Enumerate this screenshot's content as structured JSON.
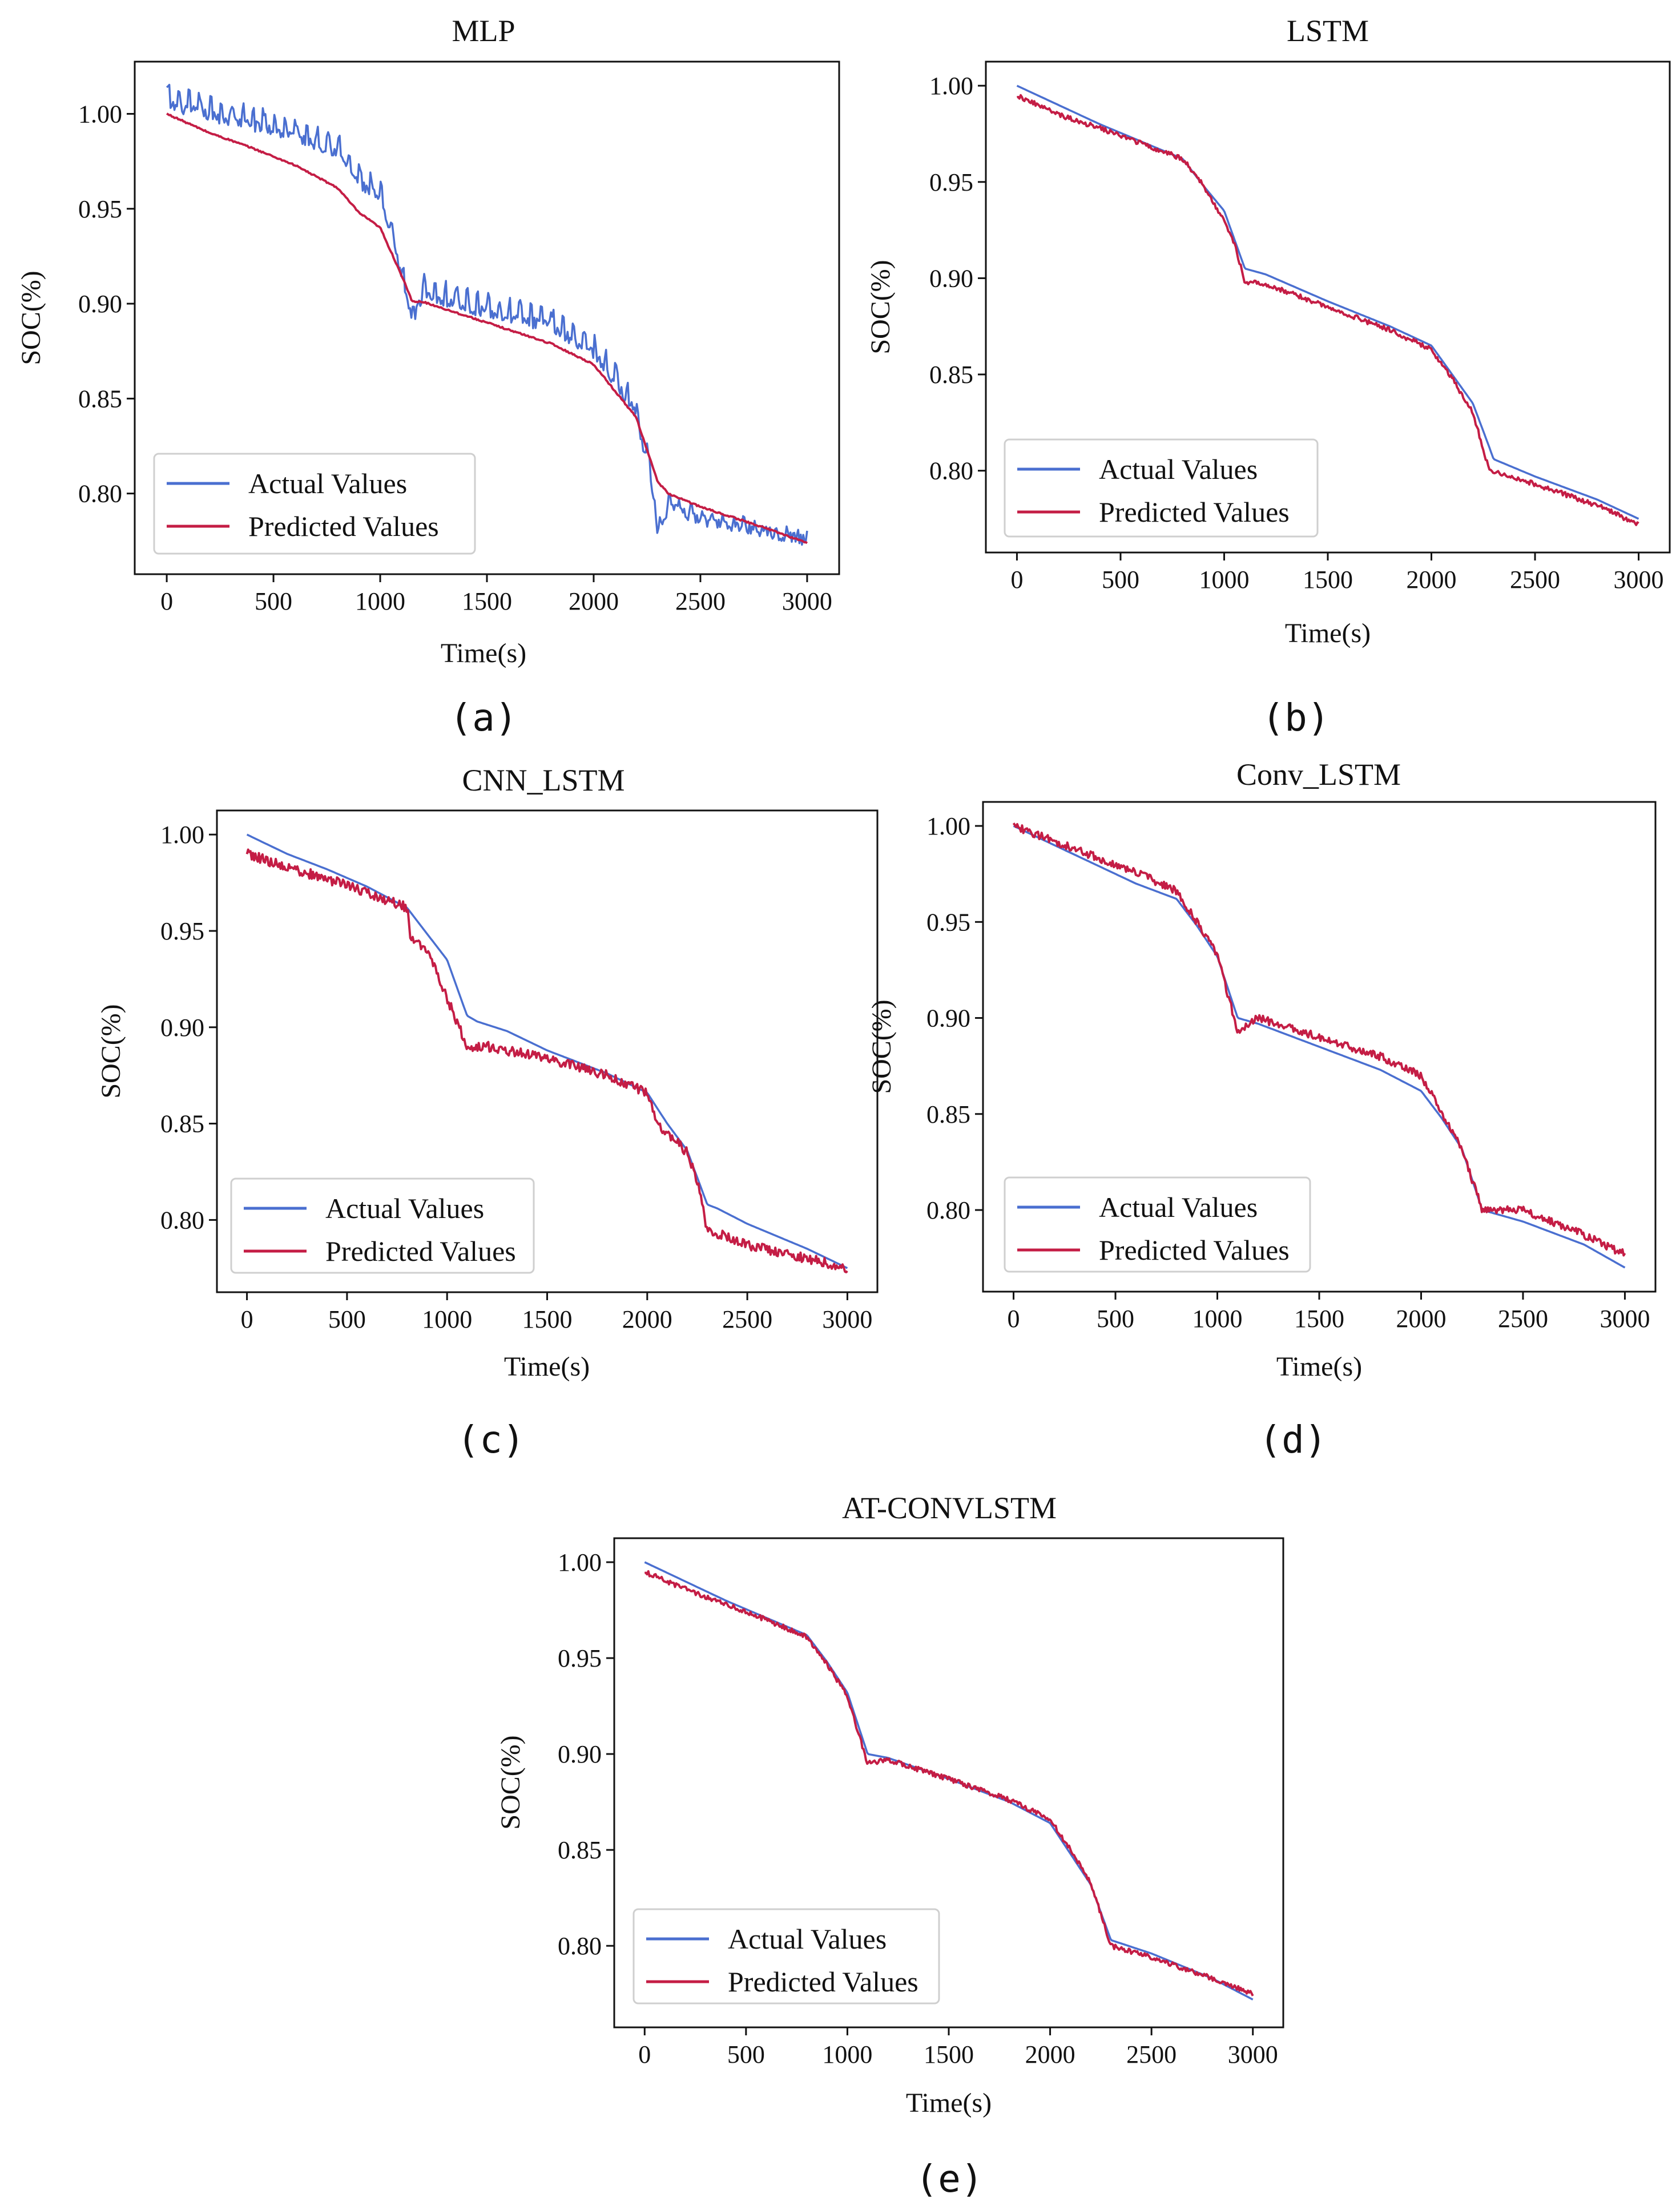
{
  "figure": {
    "colors": {
      "actual": "#4a6fd0",
      "predicted": "#c41d45"
    },
    "captions": [
      "(a)",
      "(b)",
      "(c)",
      "(d)",
      "(e)"
    ]
  },
  "chart_data": [
    {
      "type": "line",
      "title": "MLP",
      "caption": "(a)",
      "xlabel": "Time(s)",
      "ylabel": "SOC(%)",
      "xlim": [
        -150,
        3150
      ],
      "ylim": [
        0.7575,
        1.0275
      ],
      "xticks": [
        0,
        500,
        1000,
        1500,
        2000,
        2500,
        3000
      ],
      "yticks": [
        0.8,
        0.85,
        0.9,
        0.95,
        1.0
      ],
      "ytick_labels": [
        "0.80",
        "0.85",
        "0.90",
        "0.95",
        "1.00"
      ],
      "legend": {
        "position": "lower-left",
        "entries": [
          "Actual Values",
          "Predicted Values"
        ]
      },
      "series": [
        {
          "name": "Actual Values",
          "color": "#4a6fd0",
          "noise": 0.006,
          "spike_period": 50,
          "x": [
            0,
            200,
            400,
            600,
            800,
            900,
            1000,
            1100,
            1150,
            1200,
            1500,
            1800,
            2000,
            2200,
            2280,
            2300,
            2350,
            2500,
            2800,
            3000
          ],
          "y": [
            1.005,
            0.999,
            0.994,
            0.988,
            0.98,
            0.963,
            0.955,
            0.915,
            0.89,
            0.905,
            0.895,
            0.888,
            0.874,
            0.842,
            0.8,
            0.778,
            0.793,
            0.786,
            0.78,
            0.775
          ]
        },
        {
          "name": "Predicted Values",
          "color": "#c41d45",
          "noise": 0.0008,
          "spike_period": 0,
          "x": [
            0,
            200,
            400,
            600,
            800,
            900,
            1000,
            1100,
            1150,
            1200,
            1500,
            1800,
            2000,
            2200,
            2300,
            2350,
            2500,
            2800,
            3000
          ],
          "y": [
            1.0,
            0.99,
            0.982,
            0.973,
            0.961,
            0.948,
            0.94,
            0.915,
            0.901,
            0.901,
            0.89,
            0.879,
            0.868,
            0.84,
            0.806,
            0.8,
            0.793,
            0.782,
            0.774
          ]
        }
      ]
    },
    {
      "type": "line",
      "title": "LSTM",
      "caption": "(b)",
      "xlabel": "Time(s)",
      "ylabel": "SOC(%)",
      "xlim": [
        -150,
        3150
      ],
      "ylim": [
        0.7575,
        1.0125
      ],
      "xticks": [
        0,
        500,
        1000,
        1500,
        2000,
        2500,
        3000
      ],
      "yticks": [
        0.8,
        0.85,
        0.9,
        0.95,
        1.0
      ],
      "ytick_labels": [
        "0.80",
        "0.85",
        "0.90",
        "0.95",
        "1.00"
      ],
      "legend": {
        "position": "lower-left",
        "entries": [
          "Actual Values",
          "Predicted Values"
        ]
      },
      "series": [
        {
          "name": "Actual Values",
          "color": "#4a6fd0",
          "noise": 0.0,
          "spike_period": 0,
          "x": [
            0,
            200,
            400,
            600,
            800,
            900,
            1000,
            1050,
            1100,
            1200,
            1500,
            1800,
            2000,
            2100,
            2200,
            2280,
            2300,
            2500,
            2800,
            3000
          ],
          "y": [
            1.0,
            0.99,
            0.98,
            0.971,
            0.962,
            0.948,
            0.935,
            0.92,
            0.905,
            0.902,
            0.888,
            0.875,
            0.865,
            0.85,
            0.835,
            0.812,
            0.806,
            0.797,
            0.785,
            0.775
          ]
        },
        {
          "name": "Predicted Values",
          "color": "#c41d45",
          "noise": 0.0025,
          "spike_period": 0,
          "x": [
            0,
            200,
            400,
            600,
            800,
            900,
            1000,
            1050,
            1100,
            1200,
            1500,
            1800,
            2000,
            2100,
            2200,
            2280,
            2300,
            2500,
            2800,
            3000
          ],
          "y": [
            0.995,
            0.985,
            0.978,
            0.97,
            0.962,
            0.948,
            0.93,
            0.918,
            0.898,
            0.897,
            0.885,
            0.873,
            0.863,
            0.848,
            0.83,
            0.8,
            0.8,
            0.793,
            0.782,
            0.772
          ]
        }
      ]
    },
    {
      "type": "line",
      "title": "CNN_LSTM",
      "caption": "(c)",
      "xlabel": "Time(s)",
      "ylabel": "SOC(%)",
      "xlim": [
        -150,
        3150
      ],
      "ylim": [
        0.7625,
        1.0125
      ],
      "xticks": [
        0,
        500,
        1000,
        1500,
        2000,
        2500,
        3000
      ],
      "yticks": [
        0.8,
        0.85,
        0.9,
        0.95,
        1.0
      ],
      "ytick_labels": [
        "0.80",
        "0.85",
        "0.90",
        "0.95",
        "1.00"
      ],
      "legend": {
        "position": "lower-left",
        "entries": [
          "Actual Values",
          "Predicted Values"
        ]
      },
      "series": [
        {
          "name": "Actual Values",
          "color": "#4a6fd0",
          "noise": 0.0,
          "spike_period": 0,
          "x": [
            0,
            200,
            400,
            600,
            800,
            1000,
            1100,
            1150,
            1300,
            1500,
            1800,
            2000,
            2100,
            2200,
            2300,
            2350,
            2500,
            2800,
            3000
          ],
          "y": [
            1.0,
            0.99,
            0.982,
            0.973,
            0.962,
            0.935,
            0.906,
            0.903,
            0.898,
            0.888,
            0.876,
            0.866,
            0.85,
            0.836,
            0.808,
            0.806,
            0.798,
            0.785,
            0.775
          ]
        },
        {
          "name": "Predicted Values",
          "color": "#c41d45",
          "noise": 0.005,
          "spike_period": 0,
          "x": [
            0,
            200,
            400,
            600,
            800,
            820,
            900,
            1000,
            1100,
            1200,
            1500,
            1800,
            2000,
            2050,
            2200,
            2250,
            2300,
            2500,
            2800,
            3000
          ],
          "y": [
            0.99,
            0.983,
            0.977,
            0.97,
            0.962,
            0.945,
            0.94,
            0.915,
            0.89,
            0.89,
            0.884,
            0.875,
            0.866,
            0.85,
            0.835,
            0.82,
            0.795,
            0.787,
            0.78,
            0.775
          ]
        }
      ]
    },
    {
      "type": "line",
      "title": "Conv_LSTM",
      "caption": "(d)",
      "xlabel": "Time(s)",
      "ylabel": "SOC(%)",
      "xlim": [
        -150,
        3150
      ],
      "ylim": [
        0.7575,
        1.0125
      ],
      "xticks": [
        0,
        500,
        1000,
        1500,
        2000,
        2500,
        3000
      ],
      "yticks": [
        0.8,
        0.85,
        0.9,
        0.95,
        1.0
      ],
      "ytick_labels": [
        "0.80",
        "0.85",
        "0.90",
        "0.95",
        "1.00"
      ],
      "legend": {
        "position": "lower-left",
        "entries": [
          "Actual Values",
          "Predicted Values"
        ]
      },
      "series": [
        {
          "name": "Actual Values",
          "color": "#4a6fd0",
          "noise": 0.0,
          "spike_period": 0,
          "x": [
            0,
            200,
            400,
            600,
            800,
            900,
            1000,
            1100,
            1200,
            1500,
            1800,
            2000,
            2100,
            2200,
            2300,
            2500,
            2800,
            3000
          ],
          "y": [
            1.0,
            0.99,
            0.98,
            0.97,
            0.962,
            0.948,
            0.932,
            0.9,
            0.897,
            0.885,
            0.873,
            0.862,
            0.848,
            0.832,
            0.8,
            0.794,
            0.782,
            0.77
          ]
        },
        {
          "name": "Predicted Values",
          "color": "#c41d45",
          "noise": 0.004,
          "spike_period": 0,
          "x": [
            0,
            200,
            400,
            600,
            800,
            900,
            1000,
            1100,
            1200,
            1500,
            1800,
            2000,
            2100,
            2200,
            2300,
            2500,
            2800,
            3000
          ],
          "y": [
            1.0,
            0.992,
            0.984,
            0.976,
            0.966,
            0.95,
            0.933,
            0.893,
            0.9,
            0.89,
            0.88,
            0.87,
            0.851,
            0.832,
            0.8,
            0.8,
            0.787,
            0.777
          ]
        }
      ]
    },
    {
      "type": "line",
      "title": "AT-CONVLSTM",
      "caption": "(e)",
      "xlabel": "Time(s)",
      "ylabel": "SOC(%)",
      "xlim": [
        -150,
        3150
      ],
      "ylim": [
        0.7575,
        1.0125
      ],
      "xticks": [
        0,
        500,
        1000,
        1500,
        2000,
        2500,
        3000
      ],
      "yticks": [
        0.8,
        0.85,
        0.9,
        0.95,
        1.0
      ],
      "ytick_labels": [
        "0.80",
        "0.85",
        "0.90",
        "0.95",
        "1.00"
      ],
      "legend": {
        "position": "lower-left",
        "entries": [
          "Actual Values",
          "Predicted Values"
        ]
      },
      "series": [
        {
          "name": "Actual Values",
          "color": "#4a6fd0",
          "noise": 0.0,
          "spike_period": 0,
          "x": [
            0,
            200,
            400,
            600,
            800,
            900,
            1000,
            1100,
            1200,
            1500,
            1800,
            2000,
            2100,
            2200,
            2300,
            2500,
            2800,
            3000
          ],
          "y": [
            1.0,
            0.99,
            0.98,
            0.971,
            0.962,
            0.948,
            0.932,
            0.9,
            0.898,
            0.887,
            0.875,
            0.864,
            0.848,
            0.832,
            0.803,
            0.796,
            0.783,
            0.772
          ]
        },
        {
          "name": "Predicted Values",
          "color": "#c41d45",
          "noise": 0.0025,
          "spike_period": 0,
          "x": [
            0,
            200,
            400,
            600,
            800,
            900,
            1000,
            1100,
            1200,
            1500,
            1800,
            2000,
            2100,
            2200,
            2300,
            2500,
            2800,
            3000
          ],
          "y": [
            0.995,
            0.986,
            0.978,
            0.97,
            0.961,
            0.947,
            0.93,
            0.895,
            0.897,
            0.887,
            0.876,
            0.866,
            0.85,
            0.833,
            0.8,
            0.794,
            0.783,
            0.775
          ]
        }
      ]
    }
  ]
}
